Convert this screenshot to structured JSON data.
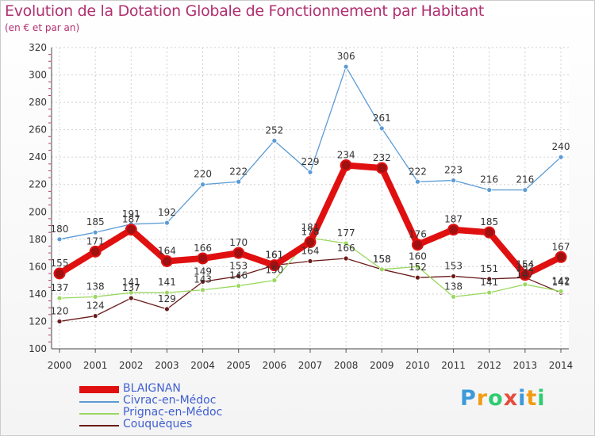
{
  "header": {
    "title": "Evolution de la Dotation Globale de Fonctionnement par Habitant",
    "subtitle": "(en € et par an)"
  },
  "logo": {
    "text": "Proxiti",
    "colors": [
      "#3b9ad9",
      "#f39c12",
      "#2ecc71",
      "#e74c3c",
      "#3b9ad9",
      "#f39c12",
      "#2ecc71"
    ]
  },
  "chart_data": {
    "type": "line",
    "title": "Evolution de la Dotation Globale de Fonctionnement par Habitant",
    "subtitle": "(en € et par an)",
    "x": [
      "2000",
      "2001",
      "2002",
      "2003",
      "2004",
      "2005",
      "2006",
      "2007",
      "2008",
      "2009",
      "2010",
      "2011",
      "2012",
      "2013",
      "2014"
    ],
    "ylim": [
      100,
      320
    ],
    "yticks": [
      100,
      120,
      140,
      160,
      180,
      200,
      220,
      240,
      260,
      280,
      300,
      320
    ],
    "grid": true,
    "legend": "bottom-left",
    "series": [
      {
        "name": "BLAIGNAN",
        "color": "#e01010",
        "values": [
          155,
          171,
          187,
          164,
          166,
          170,
          161,
          178,
          234,
          232,
          176,
          187,
          185,
          154,
          167
        ]
      },
      {
        "name": "Civrac-en-Médoc",
        "color": "#5b9bd5",
        "values": [
          180,
          185,
          191,
          192,
          220,
          222,
          252,
          229,
          306,
          261,
          222,
          223,
          216,
          216,
          240
        ]
      },
      {
        "name": "Prignac-en-Médoc",
        "color": "#9ad860",
        "values": [
          137,
          138,
          141,
          141,
          143,
          146,
          150,
          181,
          177,
          158,
          160,
          138,
          141,
          147,
          142
        ]
      },
      {
        "name": "Couquèques",
        "color": "#6b1a1a",
        "values": [
          120,
          124,
          137,
          129,
          149,
          153,
          161,
          164,
          166,
          158,
          152,
          153,
          151,
          152,
          141
        ]
      }
    ]
  }
}
